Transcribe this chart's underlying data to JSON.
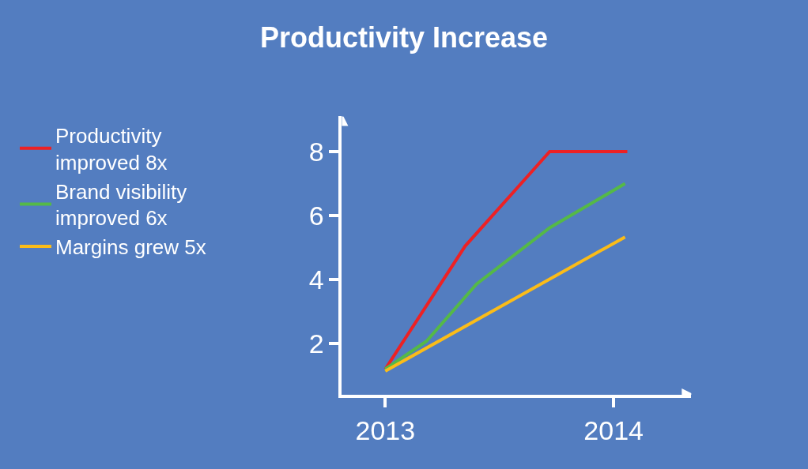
{
  "chart_data": {
    "type": "line",
    "title": "Productivity Increase",
    "xlim": [
      2012.81,
      2014.34
    ],
    "xticks": [
      2013,
      2014
    ],
    "ylim": [
      0.4,
      9.1
    ],
    "yticks": [
      2,
      4,
      6,
      8
    ],
    "grid": false,
    "legend": "left",
    "marker": "none",
    "line_style": "solid",
    "series": [
      {
        "name": "Productivity improved 8x",
        "color": "#ed2124",
        "x": [
          2013,
          2013.35,
          2013.72,
          2014.06
        ],
        "values": [
          1.2,
          5.05,
          8,
          8
        ]
      },
      {
        "name": "Brand visibility improved 6x",
        "color": "#55b947",
        "x": [
          2013,
          2013.18,
          2013.4,
          2013.72,
          2014.05
        ],
        "values": [
          1.2,
          2.07,
          3.86,
          5.62,
          7.0
        ]
      },
      {
        "name": "Margins grew 5x",
        "color": "#fbbc18",
        "x": [
          2013,
          2014.05
        ],
        "values": [
          1.14,
          5.33
        ]
      }
    ]
  }
}
